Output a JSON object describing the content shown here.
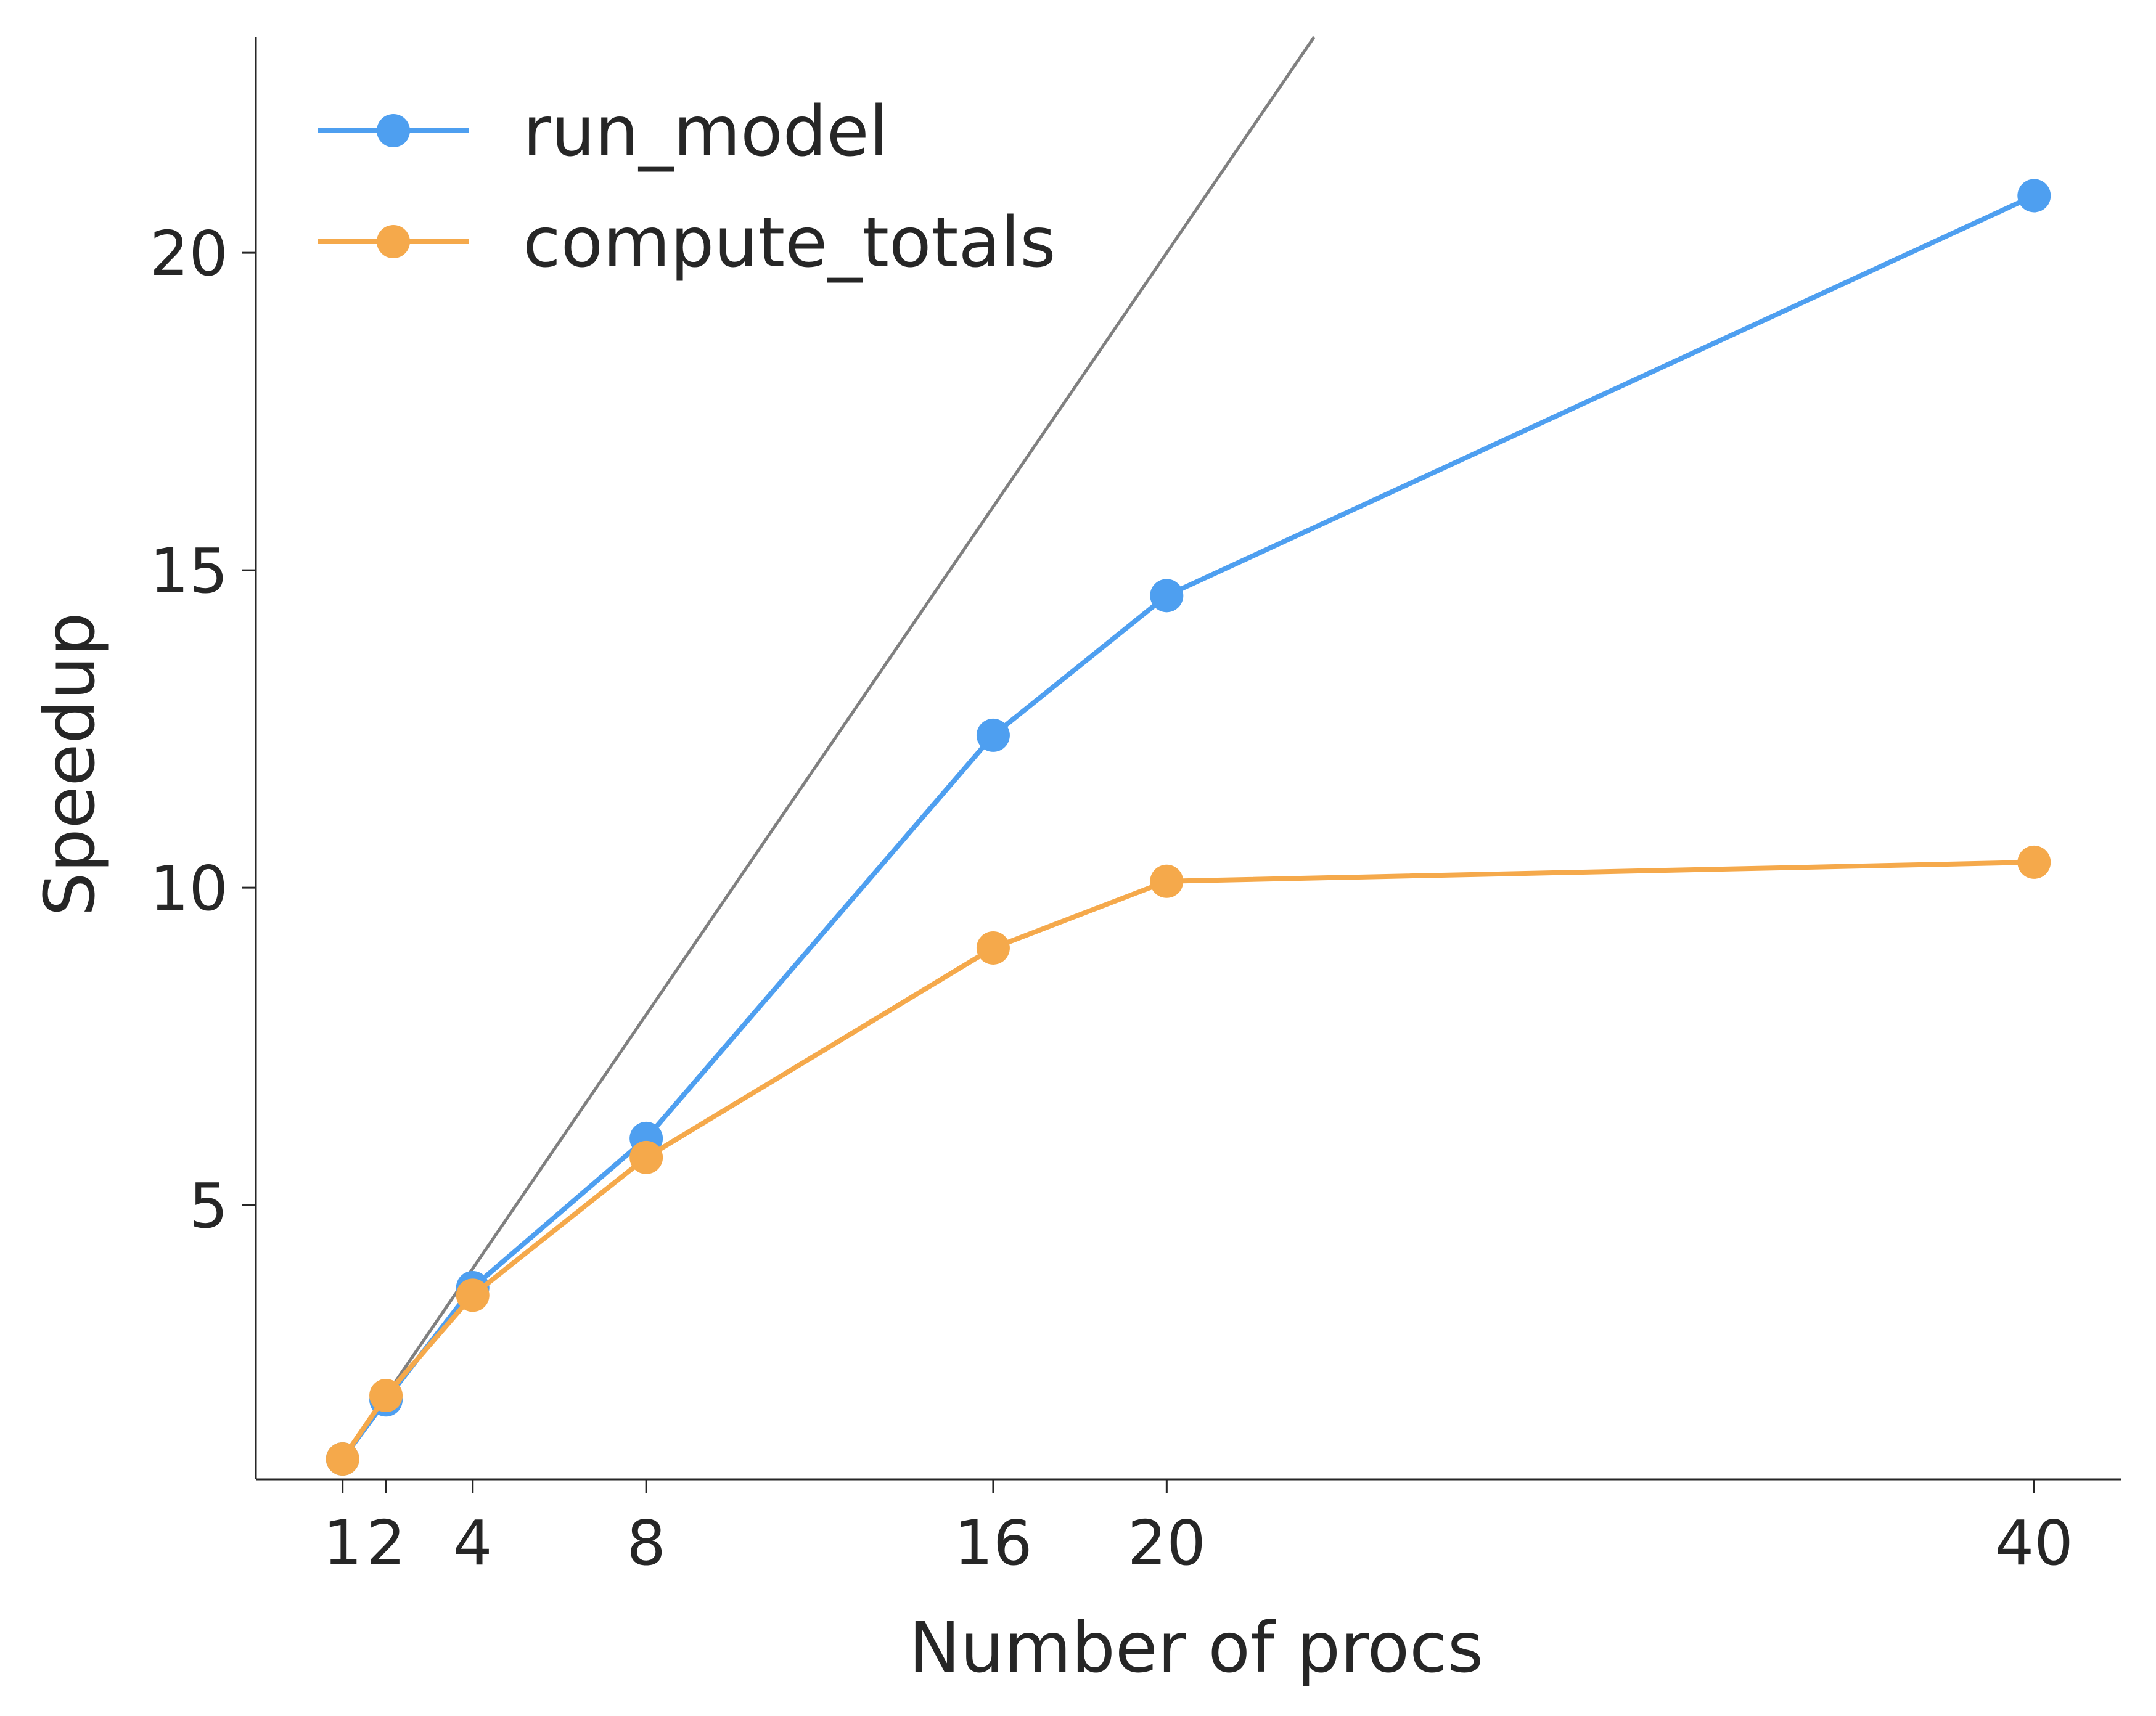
{
  "chart_data": {
    "type": "line",
    "title": "",
    "xlabel": "Number of procs",
    "ylabel": "Speedup",
    "x": [
      1,
      2,
      4,
      8,
      16,
      20,
      40
    ],
    "xticks": [
      "1",
      "2",
      "4",
      "8",
      "16",
      "20",
      "40"
    ],
    "yticks": [
      "5",
      "10",
      "15",
      "20"
    ],
    "xlim": [
      -1,
      42
    ],
    "ylim": [
      0.68,
      23.4
    ],
    "grid": false,
    "legend_position": "upper-left",
    "reference_line": {
      "description": "ideal speedup y = x",
      "color": "#808080"
    },
    "series": [
      {
        "name": "run_model",
        "color": "#4e9ff0",
        "values": [
          1.0,
          1.93,
          3.7,
          6.05,
          12.4,
          14.6,
          20.9
        ]
      },
      {
        "name": "compute_totals",
        "color": "#f5a94b",
        "values": [
          1.0,
          2.0,
          3.58,
          5.75,
          9.05,
          10.1,
          10.4
        ]
      }
    ]
  }
}
